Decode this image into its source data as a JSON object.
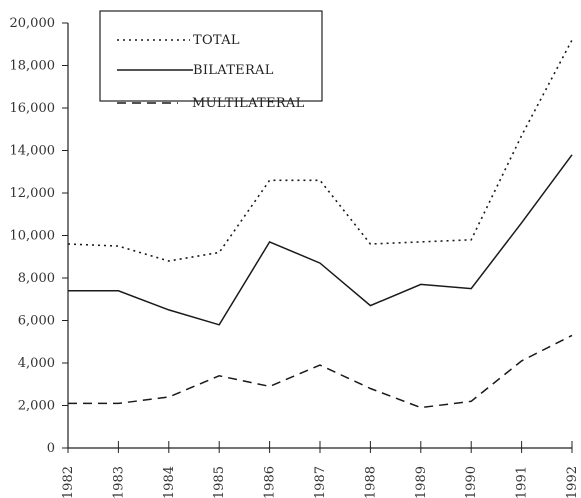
{
  "chart_data": {
    "type": "line",
    "title": "",
    "xlabel": "",
    "ylabel": "",
    "x": [
      "1982",
      "1983",
      "1984",
      "1985",
      "1986",
      "1987",
      "1988",
      "1989",
      "1990",
      "1991",
      "1992"
    ],
    "ylim": [
      0,
      20000
    ],
    "yticks": [
      "0",
      "2,000",
      "4,000",
      "6,000",
      "8,000",
      "10,000",
      "12,000",
      "14,000",
      "16,000",
      "18,000",
      "20,000"
    ],
    "yticks_values": [
      0,
      2000,
      4000,
      6000,
      8000,
      10000,
      12000,
      14000,
      16000,
      18000,
      20000
    ],
    "grid": false,
    "legend_position": "top-left",
    "series": [
      {
        "name": "TOTAL",
        "style": "dotted",
        "values": [
          9600,
          9500,
          8800,
          9200,
          12600,
          12600,
          9600,
          9700,
          9800,
          14700,
          19200
        ]
      },
      {
        "name": "BILATERAL",
        "style": "solid",
        "values": [
          7400,
          7400,
          6500,
          5800,
          9700,
          8700,
          6700,
          7700,
          7500,
          10600,
          13800
        ]
      },
      {
        "name": "MULTILATERAL",
        "style": "dashed",
        "values": [
          2100,
          2100,
          2400,
          3400,
          2900,
          3900,
          2800,
          1900,
          2200,
          4100,
          5300
        ]
      }
    ]
  }
}
